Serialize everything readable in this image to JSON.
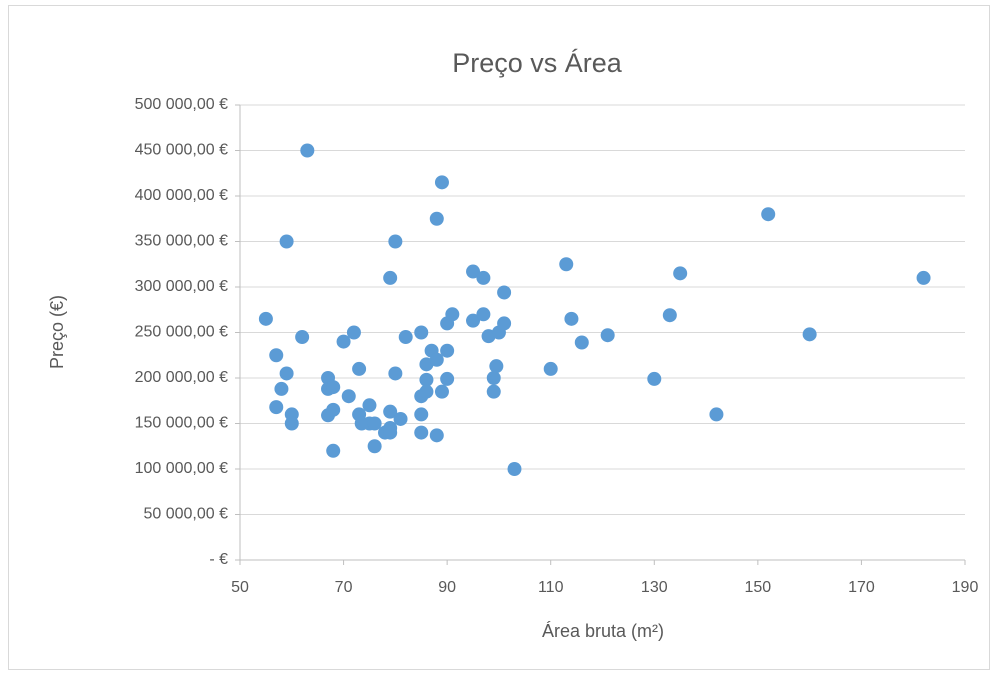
{
  "chart_data": {
    "type": "scatter",
    "title": "Preço vs Área",
    "xlabel": "Área bruta (m²)",
    "ylabel": "Preço (€)",
    "color": "#5b9bd5",
    "grid": true,
    "xlim": [
      50,
      190
    ],
    "xticks": [
      50,
      70,
      90,
      110,
      130,
      150,
      170,
      190
    ],
    "ylim": [
      0,
      500000
    ],
    "yticks": [
      {
        "value": 0,
        "label": "-   €"
      },
      {
        "value": 50000,
        "label": "50 000,00 €"
      },
      {
        "value": 100000,
        "label": "100 000,00 €"
      },
      {
        "value": 150000,
        "label": "150 000,00 €"
      },
      {
        "value": 200000,
        "label": "200 000,00 €"
      },
      {
        "value": 250000,
        "label": "250 000,00 €"
      },
      {
        "value": 300000,
        "label": "300 000,00 €"
      },
      {
        "value": 350000,
        "label": "350 000,00 €"
      },
      {
        "value": 400000,
        "label": "400 000,00 €"
      },
      {
        "value": 450000,
        "label": "450 000,00 €"
      },
      {
        "value": 500000,
        "label": "500 000,00 €"
      }
    ],
    "x": [
      55,
      57,
      57,
      58,
      59,
      59,
      60,
      60,
      62,
      63,
      67,
      67,
      67,
      68,
      68,
      68,
      70,
      71,
      72,
      73,
      73,
      73.5,
      75,
      75,
      76,
      76,
      78,
      79,
      79,
      79,
      79,
      80,
      80,
      81,
      82,
      85,
      85,
      85,
      85,
      86,
      86,
      86,
      87,
      88,
      88,
      88,
      89,
      89,
      90,
      90,
      90,
      91,
      95,
      95,
      97,
      97,
      98,
      99,
      99,
      99.5,
      100,
      101,
      101,
      103,
      110,
      113,
      114,
      116,
      121,
      130,
      133,
      135,
      142,
      152,
      160,
      182
    ],
    "values": [
      265000,
      225000,
      168000,
      188000,
      205000,
      350000,
      160000,
      150000,
      245000,
      450000,
      200000,
      188000,
      159000,
      190000,
      165000,
      120000,
      240000,
      180000,
      250000,
      210000,
      160000,
      150000,
      170000,
      150000,
      150000,
      125000,
      140000,
      163000,
      310000,
      145000,
      140000,
      350000,
      205000,
      155000,
      245000,
      250000,
      180000,
      160000,
      140000,
      215000,
      198000,
      185000,
      230000,
      375000,
      220000,
      137000,
      415000,
      185000,
      260000,
      230000,
      199000,
      270000,
      317000,
      263000,
      310000,
      270000,
      246000,
      200000,
      185000,
      213000,
      250000,
      294000,
      260000,
      100000,
      210000,
      325000,
      265000,
      239000,
      247000,
      199000,
      269000,
      315000,
      160000,
      380000,
      248000,
      310000
    ]
  }
}
